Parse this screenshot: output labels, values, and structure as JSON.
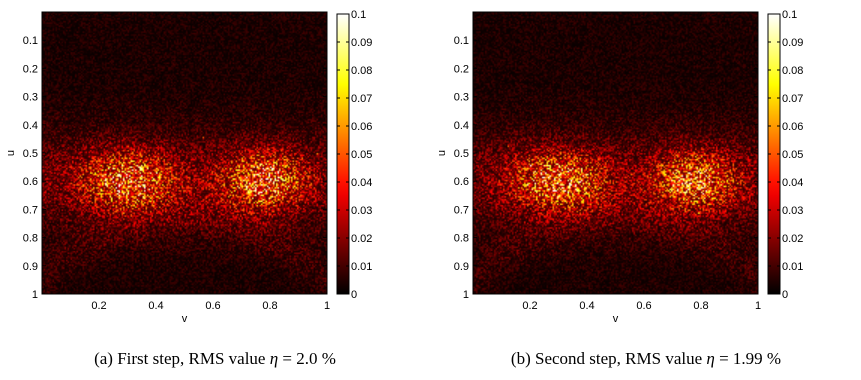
{
  "chart_data": [
    {
      "type": "heatmap",
      "title": "",
      "xlabel": "v",
      "ylabel": "u",
      "xlim": [
        0,
        1
      ],
      "ylim": [
        0,
        1
      ],
      "x_ticks": [
        "0.2",
        "0.4",
        "0.6",
        "0.8",
        "1"
      ],
      "x_tick_values": [
        0.2,
        0.4,
        0.6,
        0.8,
        1
      ],
      "y_ticks": [
        "0.1",
        "0.2",
        "0.3",
        "0.4",
        "0.5",
        "0.6",
        "0.7",
        "0.8",
        "0.9",
        "1"
      ],
      "y_tick_values": [
        0.1,
        0.2,
        0.3,
        0.4,
        0.5,
        0.6,
        0.7,
        0.8,
        0.9,
        1
      ],
      "colorbar_ticks": [
        "0",
        "0.01",
        "0.02",
        "0.03",
        "0.04",
        "0.05",
        "0.06",
        "0.07",
        "0.08",
        "0.09",
        "0.1"
      ],
      "colorbar_tick_values": [
        0,
        0.01,
        0.02,
        0.03,
        0.04,
        0.05,
        0.06,
        0.07,
        0.08,
        0.09,
        0.1
      ],
      "colorbar_range": [
        0,
        0.1
      ],
      "colormap": "hot",
      "caption": {
        "tag": "(a)",
        "text": "First step, RMS value",
        "symbol": "η",
        "equals": "=",
        "value": "2.0",
        "unit": "%"
      }
    },
    {
      "type": "heatmap",
      "title": "",
      "xlabel": "v",
      "ylabel": "u",
      "xlim": [
        0,
        1
      ],
      "ylim": [
        0,
        1
      ],
      "x_ticks": [
        "0.2",
        "0.4",
        "0.6",
        "0.8",
        "1"
      ],
      "x_tick_values": [
        0.2,
        0.4,
        0.6,
        0.8,
        1
      ],
      "y_ticks": [
        "0.1",
        "0.2",
        "0.3",
        "0.4",
        "0.5",
        "0.6",
        "0.7",
        "0.8",
        "0.9",
        "1"
      ],
      "y_tick_values": [
        0.1,
        0.2,
        0.3,
        0.4,
        0.5,
        0.6,
        0.7,
        0.8,
        0.9,
        1
      ],
      "colorbar_ticks": [
        "0",
        "0.01",
        "0.02",
        "0.03",
        "0.04",
        "0.05",
        "0.06",
        "0.07",
        "0.08",
        "0.09",
        "0.1"
      ],
      "colorbar_tick_values": [
        0,
        0.01,
        0.02,
        0.03,
        0.04,
        0.05,
        0.06,
        0.07,
        0.08,
        0.09,
        0.1
      ],
      "colorbar_range": [
        0,
        0.1
      ],
      "colormap": "hot",
      "caption": {
        "tag": "(b)",
        "text": "Second step, RMS value",
        "symbol": "η",
        "equals": "=",
        "value": "1.99",
        "unit": "%"
      }
    }
  ]
}
